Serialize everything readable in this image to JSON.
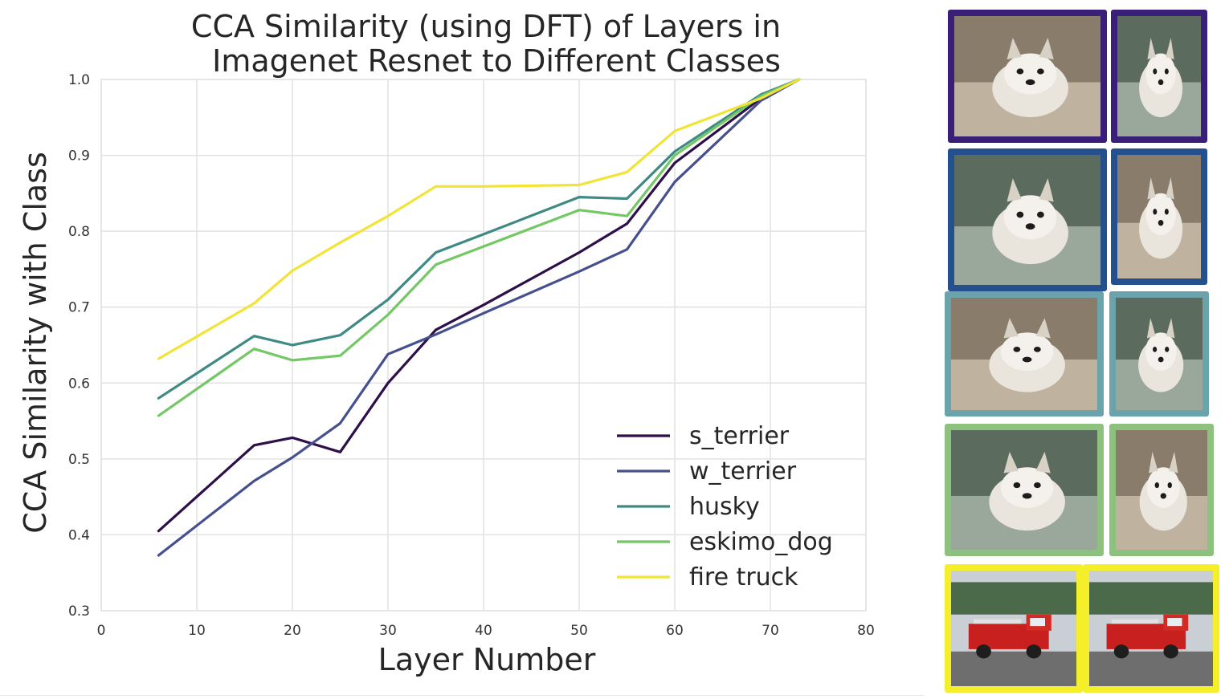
{
  "chart_data": {
    "type": "line",
    "title_lines": [
      "CCA Similarity (using DFT) of Layers in",
      "Imagenet Resnet to Different Classes"
    ],
    "xlabel": "Layer Number",
    "ylabel": "CCA Similarity with Class",
    "xlim": [
      0,
      80
    ],
    "ylim": [
      0.3,
      1.0
    ],
    "xticks": [
      0,
      10,
      20,
      30,
      40,
      50,
      60,
      70,
      80
    ],
    "xtick_labels": [
      "0",
      "10",
      "20",
      "30",
      "40",
      "50",
      "60",
      "70",
      "80"
    ],
    "yticks": [
      0.3,
      0.4,
      0.5,
      0.6,
      0.7,
      0.8,
      0.9,
      1.0
    ],
    "ytick_labels": [
      "0.3",
      "0.4",
      "0.5",
      "0.6",
      "0.7",
      "0.8",
      "0.9",
      "1.0"
    ],
    "grid": true,
    "legend_position": "bottom-right",
    "series": [
      {
        "name": "s_terrier",
        "color": "#2d0f4a",
        "x": [
          6,
          16,
          20,
          25,
          30,
          35,
          40,
          50,
          55,
          60,
          69,
          73
        ],
        "y": [
          0.405,
          0.518,
          0.528,
          0.509,
          0.6,
          0.67,
          0.703,
          0.772,
          0.81,
          0.89,
          0.975,
          1.0
        ]
      },
      {
        "name": "w_terrier",
        "color": "#46508e",
        "x": [
          6,
          16,
          20,
          25,
          30,
          35,
          40,
          50,
          55,
          60,
          69,
          73
        ],
        "y": [
          0.373,
          0.471,
          0.502,
          0.547,
          0.638,
          0.664,
          0.692,
          0.747,
          0.776,
          0.865,
          0.972,
          1.0
        ]
      },
      {
        "name": "husky",
        "color": "#3f8a85",
        "x": [
          6,
          16,
          20,
          25,
          30,
          35,
          40,
          50,
          55,
          60,
          69,
          73
        ],
        "y": [
          0.58,
          0.662,
          0.65,
          0.663,
          0.71,
          0.772,
          0.796,
          0.845,
          0.843,
          0.905,
          0.98,
          1.0
        ]
      },
      {
        "name": "eskimo_dog",
        "color": "#74c765",
        "x": [
          6,
          16,
          20,
          25,
          30,
          35,
          40,
          50,
          55,
          60,
          69,
          73
        ],
        "y": [
          0.557,
          0.645,
          0.63,
          0.636,
          0.69,
          0.756,
          0.78,
          0.828,
          0.82,
          0.9,
          0.978,
          1.0
        ]
      },
      {
        "name": "fire truck",
        "color": "#f2e437",
        "x": [
          6,
          16,
          20,
          25,
          30,
          35,
          40,
          50,
          55,
          60,
          69,
          73
        ],
        "y": [
          0.632,
          0.705,
          0.748,
          0.785,
          0.82,
          0.859,
          0.859,
          0.861,
          0.878,
          0.932,
          0.975,
          1.0
        ]
      }
    ]
  },
  "thumbnail_rows": [
    {
      "class": "s_terrier",
      "frame_color": "#3a1f78",
      "subjects": [
        "dog-photo",
        "dog-photo"
      ]
    },
    {
      "class": "w_terrier",
      "frame_color": "#24508e",
      "subjects": [
        "dog-photo",
        "dog-photo"
      ]
    },
    {
      "class": "husky",
      "frame_color": "#6aa3ab",
      "subjects": [
        "dog-photo",
        "dog-photo"
      ]
    },
    {
      "class": "eskimo_dog",
      "frame_color": "#8cc27d",
      "subjects": [
        "dog-photo",
        "dog-photo"
      ]
    },
    {
      "class": "fire truck",
      "frame_color": "#f5ef2a",
      "subjects": [
        "truck-photo",
        "truck-photo"
      ]
    }
  ]
}
